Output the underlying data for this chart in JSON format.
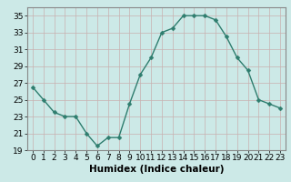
{
  "title": "",
  "xlabel": "Humidex (Indice chaleur)",
  "ylabel": "",
  "x": [
    0,
    1,
    2,
    3,
    4,
    5,
    6,
    7,
    8,
    9,
    10,
    11,
    12,
    13,
    14,
    15,
    16,
    17,
    18,
    19,
    20,
    21,
    22,
    23
  ],
  "y": [
    26.5,
    25.0,
    23.5,
    23.0,
    23.0,
    21.0,
    19.5,
    20.5,
    20.5,
    24.5,
    28.0,
    30.0,
    33.0,
    33.5,
    35.0,
    35.0,
    35.0,
    34.5,
    32.5,
    30.0,
    28.5,
    25.0,
    24.5,
    24.0
  ],
  "line_color": "#2e7d6e",
  "marker": "D",
  "marker_size": 2.5,
  "bg_color": "#cce9e7",
  "grid_color": "#c8b0b0",
  "ylim": [
    19,
    36
  ],
  "yticks": [
    19,
    21,
    23,
    25,
    27,
    29,
    31,
    33,
    35
  ],
  "xlim": [
    -0.5,
    23.5
  ],
  "xticks": [
    0,
    1,
    2,
    3,
    4,
    5,
    6,
    7,
    8,
    9,
    10,
    11,
    12,
    13,
    14,
    15,
    16,
    17,
    18,
    19,
    20,
    21,
    22,
    23
  ],
  "tick_fontsize": 6.5,
  "label_fontsize": 7.5,
  "line_width": 1.0,
  "tick_color": "#000000",
  "spine_color": "#888888"
}
